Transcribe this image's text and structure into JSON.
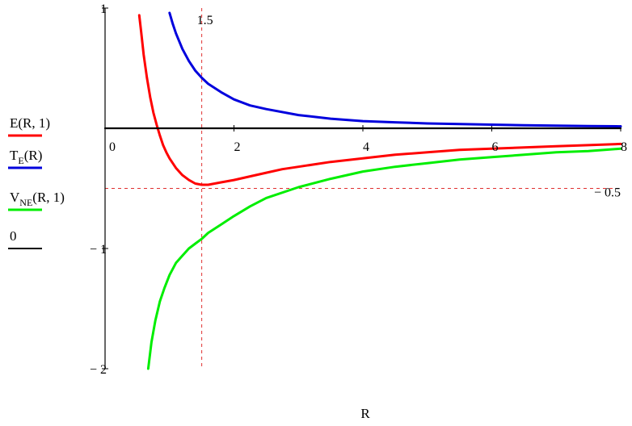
{
  "chart_data": {
    "type": "line",
    "xlabel": "R",
    "ylabel": "",
    "xlim": [
      0,
      8
    ],
    "ylim": [
      -2,
      1
    ],
    "x_ticks": [
      {
        "value": 0,
        "label": "0"
      },
      {
        "value": 2,
        "label": "2"
      },
      {
        "value": 4,
        "label": "4"
      },
      {
        "value": 6,
        "label": "6"
      },
      {
        "value": 8,
        "label": "8"
      }
    ],
    "y_ticks": [
      {
        "value": 1,
        "label": "1"
      },
      {
        "value": -1,
        "label": "− 1"
      },
      {
        "value": -2,
        "label": "− 2"
      }
    ],
    "markers": [
      {
        "axis": "x",
        "value": 1.5,
        "label": "1.5",
        "color": "#e03030"
      },
      {
        "axis": "y",
        "value": -0.5,
        "label": "− 0.5",
        "color": "#e03030"
      }
    ],
    "series": [
      {
        "name_main": "E",
        "name_sub": "",
        "name_args": "(R, 1)",
        "color": "#ff0000",
        "x": [
          0.53,
          0.56,
          0.6,
          0.65,
          0.7,
          0.75,
          0.8,
          0.85,
          0.9,
          0.95,
          1.0,
          1.1,
          1.2,
          1.3,
          1.4,
          1.5,
          1.6,
          1.7,
          1.8,
          2.0,
          2.25,
          2.5,
          2.75,
          3.0,
          3.5,
          4.0,
          4.5,
          5.0,
          5.5,
          6.0,
          6.5,
          7.0,
          7.5,
          8.0
        ],
        "y": [
          0.94,
          0.8,
          0.61,
          0.42,
          0.26,
          0.13,
          0.03,
          -0.06,
          -0.14,
          -0.2,
          -0.25,
          -0.33,
          -0.39,
          -0.43,
          -0.46,
          -0.47,
          -0.47,
          -0.46,
          -0.45,
          -0.43,
          -0.4,
          -0.37,
          -0.34,
          -0.32,
          -0.28,
          -0.25,
          -0.22,
          -0.2,
          -0.18,
          -0.17,
          -0.16,
          -0.15,
          -0.14,
          -0.13
        ]
      },
      {
        "name_main": "T",
        "name_sub": "E",
        "name_args": "(R)",
        "color": "#0000dd",
        "x": [
          1.0,
          1.05,
          1.1,
          1.2,
          1.3,
          1.4,
          1.5,
          1.6,
          1.8,
          2.0,
          2.25,
          2.5,
          3.0,
          3.5,
          4.0,
          4.5,
          5.0,
          5.5,
          6.0,
          6.5,
          7.0,
          7.5,
          8.0
        ],
        "y": [
          0.96,
          0.87,
          0.79,
          0.66,
          0.56,
          0.48,
          0.42,
          0.37,
          0.3,
          0.24,
          0.19,
          0.16,
          0.11,
          0.08,
          0.06,
          0.05,
          0.04,
          0.035,
          0.03,
          0.025,
          0.022,
          0.019,
          0.016
        ]
      },
      {
        "name_main": "V",
        "name_sub": "NE",
        "name_args": "(R, 1)",
        "color": "#00ee00",
        "x": [
          0.67,
          0.72,
          0.78,
          0.85,
          0.92,
          1.0,
          1.1,
          1.2,
          1.3,
          1.4,
          1.5,
          1.6,
          1.8,
          2.0,
          2.25,
          2.5,
          3.0,
          3.5,
          4.0,
          4.5,
          5.0,
          5.5,
          6.0,
          6.5,
          7.0,
          7.5,
          8.0
        ],
        "y": [
          -2.0,
          -1.78,
          -1.6,
          -1.44,
          -1.33,
          -1.22,
          -1.12,
          -1.06,
          -1.0,
          -0.96,
          -0.92,
          -0.87,
          -0.8,
          -0.73,
          -0.65,
          -0.58,
          -0.49,
          -0.42,
          -0.36,
          -0.32,
          -0.29,
          -0.26,
          -0.24,
          -0.22,
          -0.2,
          -0.19,
          -0.17
        ]
      },
      {
        "name_main": "0",
        "name_sub": "",
        "name_args": "",
        "color": "#000000",
        "x": [
          0,
          8
        ],
        "y": [
          0,
          0
        ]
      }
    ]
  }
}
